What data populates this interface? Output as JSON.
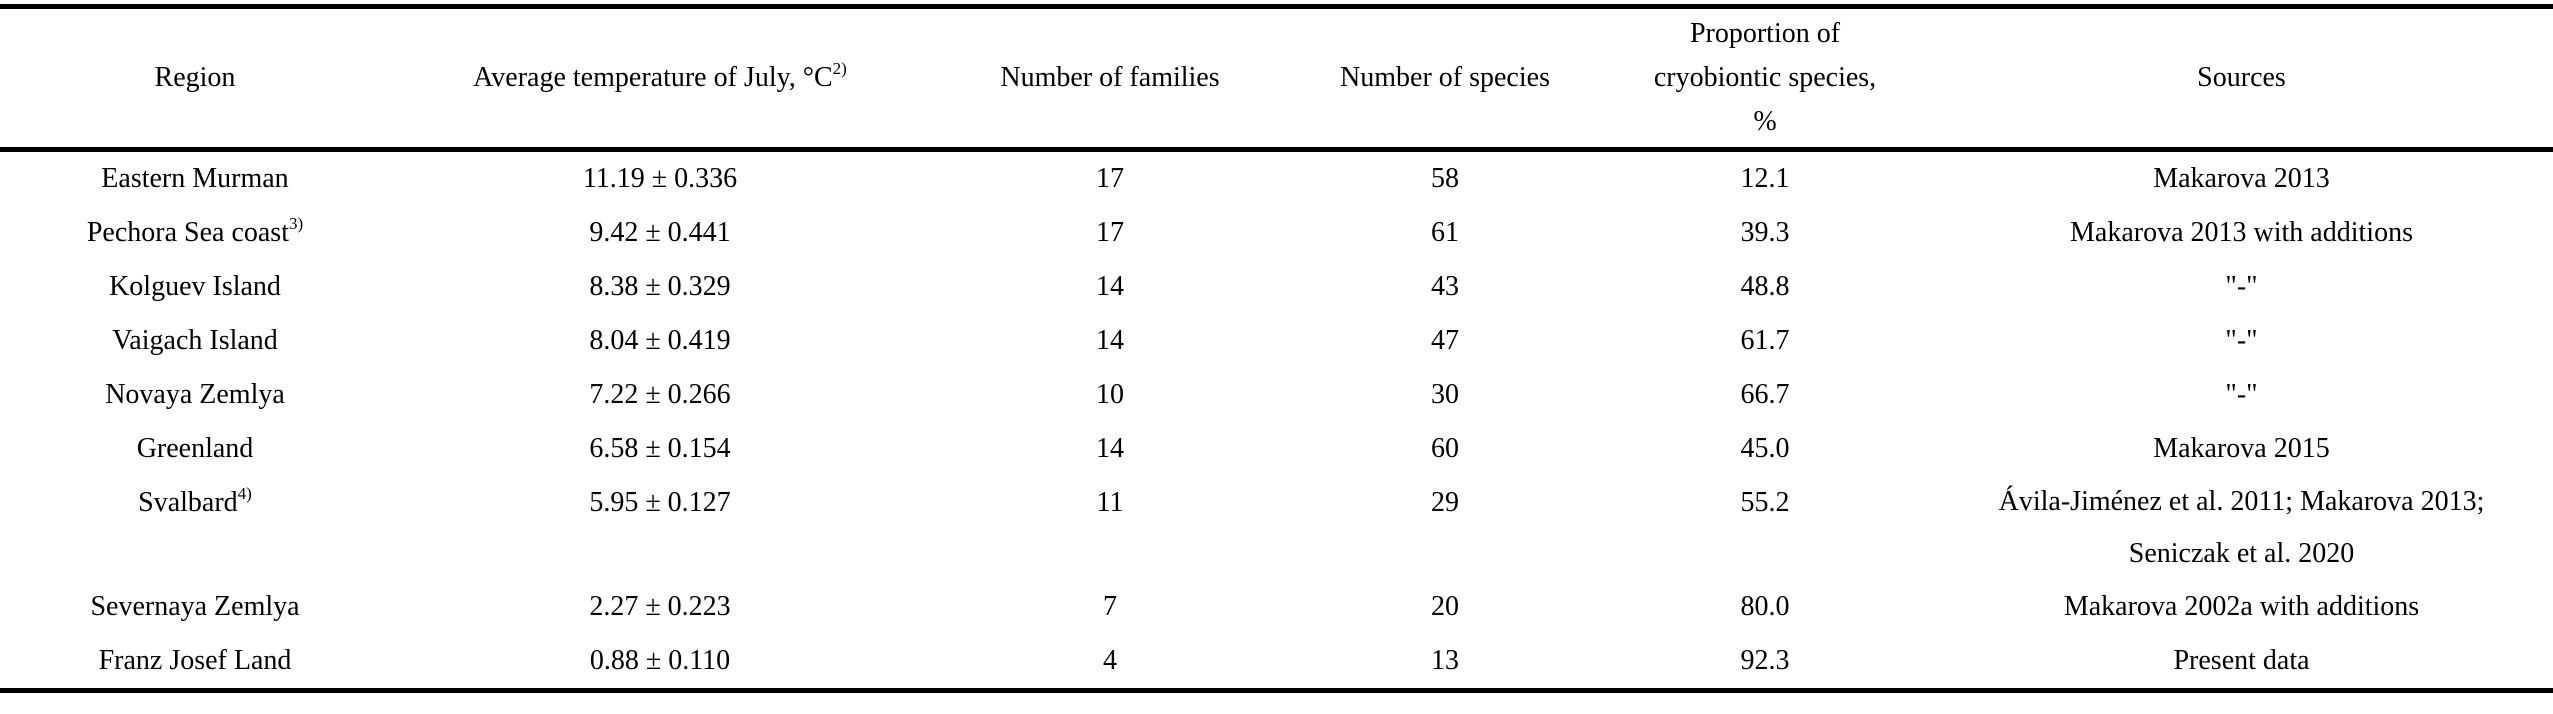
{
  "table": {
    "headers": {
      "region": "Region",
      "temperature": "Average temperature of July, °C",
      "temperature_note": "2)",
      "families": "Number of families",
      "species": "Number of species",
      "proportion": "Proportion of cryobiontic species, %",
      "sources": "Sources"
    },
    "rows": [
      {
        "region": "Eastern Murman",
        "note": "",
        "temperature": "11.19 ± 0.336",
        "families": "17",
        "species": "58",
        "proportion": "12.1",
        "sources": "Makarova 2013"
      },
      {
        "region": "Pechora Sea coast",
        "note": "3)",
        "temperature": "9.42 ± 0.441",
        "families": "17",
        "species": "61",
        "proportion": "39.3",
        "sources": "Makarova 2013 with additions"
      },
      {
        "region": "Kolguev Island",
        "note": "",
        "temperature": "8.38 ± 0.329",
        "families": "14",
        "species": "43",
        "proportion": "48.8",
        "sources": "\"-\""
      },
      {
        "region": "Vaigach Island",
        "note": "",
        "temperature": "8.04 ± 0.419",
        "families": "14",
        "species": "47",
        "proportion": "61.7",
        "sources": "\"-\""
      },
      {
        "region": "Novaya Zemlya",
        "note": "",
        "temperature": "7.22 ± 0.266",
        "families": "10",
        "species": "30",
        "proportion": "66.7",
        "sources": "\"-\""
      },
      {
        "region": "Greenland",
        "note": "",
        "temperature": "6.58 ± 0.154",
        "families": "14",
        "species": "60",
        "proportion": "45.0",
        "sources": "Makarova 2015"
      },
      {
        "region": "Svalbard",
        "note": "4)",
        "temperature": "5.95 ± 0.127",
        "families": "11",
        "species": "29",
        "proportion": "55.2",
        "sources": "Ávila-Jiménez et al. 2011; Makarova 2013; Seniczak et al. 2020"
      },
      {
        "region": "Severnaya Zemlya",
        "note": "",
        "temperature": "2.27 ± 0.223",
        "families": "7",
        "species": "20",
        "proportion": "80.0",
        "sources": "Makarova 2002a with additions"
      },
      {
        "region": "Franz Josef Land",
        "note": "",
        "temperature": "0.88 ± 0.110",
        "families": "4",
        "species": "13",
        "proportion": "92.3",
        "sources": "Present data"
      }
    ]
  }
}
